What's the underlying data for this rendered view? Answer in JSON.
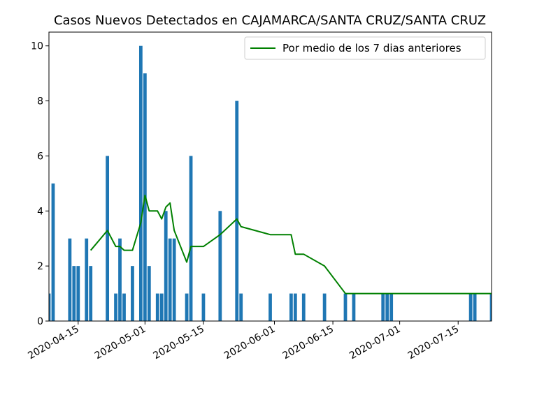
{
  "chart_data": {
    "type": "bar",
    "title": "Casos Nuevos Detectados en CAJAMARCA/SANTA CRUZ/SANTA CRUZ",
    "xlabel": "",
    "ylabel": "",
    "x_range": [
      "2020-04-08",
      "2020-07-23"
    ],
    "ylim": [
      0,
      10.5
    ],
    "y_ticks": [
      0,
      2,
      4,
      6,
      8,
      10
    ],
    "x_ticks": [
      "2020-04-15",
      "2020-05-01",
      "2020-05-15",
      "2020-06-01",
      "2020-06-15",
      "2020-07-01",
      "2020-07-15"
    ],
    "grid": false,
    "legend_position": "top-right",
    "bar_color": "#1f77b4",
    "line_color": "#008000",
    "bars": [
      {
        "x": "2020-04-08",
        "y": 1
      },
      {
        "x": "2020-04-09",
        "y": 5
      },
      {
        "x": "2020-04-13",
        "y": 3
      },
      {
        "x": "2020-04-14",
        "y": 2
      },
      {
        "x": "2020-04-15",
        "y": 2
      },
      {
        "x": "2020-04-17",
        "y": 3
      },
      {
        "x": "2020-04-18",
        "y": 2
      },
      {
        "x": "2020-04-22",
        "y": 6
      },
      {
        "x": "2020-04-24",
        "y": 1
      },
      {
        "x": "2020-04-25",
        "y": 3
      },
      {
        "x": "2020-04-26",
        "y": 1
      },
      {
        "x": "2020-04-28",
        "y": 2
      },
      {
        "x": "2020-04-30",
        "y": 10
      },
      {
        "x": "2020-05-01",
        "y": 9
      },
      {
        "x": "2020-05-02",
        "y": 2
      },
      {
        "x": "2020-05-04",
        "y": 1
      },
      {
        "x": "2020-05-05",
        "y": 1
      },
      {
        "x": "2020-05-06",
        "y": 4
      },
      {
        "x": "2020-05-07",
        "y": 3
      },
      {
        "x": "2020-05-08",
        "y": 3
      },
      {
        "x": "2020-05-11",
        "y": 1
      },
      {
        "x": "2020-05-12",
        "y": 6
      },
      {
        "x": "2020-05-15",
        "y": 1
      },
      {
        "x": "2020-05-19",
        "y": 4
      },
      {
        "x": "2020-05-23",
        "y": 8
      },
      {
        "x": "2020-05-24",
        "y": 1
      },
      {
        "x": "2020-05-31",
        "y": 1
      },
      {
        "x": "2020-06-05",
        "y": 1
      },
      {
        "x": "2020-06-06",
        "y": 1
      },
      {
        "x": "2020-06-08",
        "y": 1
      },
      {
        "x": "2020-06-13",
        "y": 1
      },
      {
        "x": "2020-06-18",
        "y": 1
      },
      {
        "x": "2020-06-20",
        "y": 1
      },
      {
        "x": "2020-06-27",
        "y": 1
      },
      {
        "x": "2020-06-28",
        "y": 1
      },
      {
        "x": "2020-06-29",
        "y": 1
      },
      {
        "x": "2020-07-18",
        "y": 1
      },
      {
        "x": "2020-07-19",
        "y": 1
      },
      {
        "x": "2020-07-23",
        "y": 1
      }
    ],
    "series": [
      {
        "name": "Por medio de los 7 dias anteriores",
        "points": [
          {
            "x": "2020-04-18",
            "y": 2.57
          },
          {
            "x": "2020-04-22",
            "y": 3.29
          },
          {
            "x": "2020-04-24",
            "y": 2.71
          },
          {
            "x": "2020-04-25",
            "y": 2.71
          },
          {
            "x": "2020-04-26",
            "y": 2.57
          },
          {
            "x": "2020-04-28",
            "y": 2.57
          },
          {
            "x": "2020-04-30",
            "y": 3.57
          },
          {
            "x": "2020-05-01",
            "y": 4.57
          },
          {
            "x": "2020-05-02",
            "y": 4.0
          },
          {
            "x": "2020-05-04",
            "y": 4.0
          },
          {
            "x": "2020-05-05",
            "y": 3.71
          },
          {
            "x": "2020-05-06",
            "y": 4.14
          },
          {
            "x": "2020-05-07",
            "y": 4.29
          },
          {
            "x": "2020-05-08",
            "y": 3.29
          },
          {
            "x": "2020-05-11",
            "y": 2.14
          },
          {
            "x": "2020-05-12",
            "y": 2.71
          },
          {
            "x": "2020-05-15",
            "y": 2.71
          },
          {
            "x": "2020-05-19",
            "y": 3.14
          },
          {
            "x": "2020-05-23",
            "y": 3.71
          },
          {
            "x": "2020-05-24",
            "y": 3.43
          },
          {
            "x": "2020-05-31",
            "y": 3.14
          },
          {
            "x": "2020-06-05",
            "y": 3.14
          },
          {
            "x": "2020-06-06",
            "y": 2.43
          },
          {
            "x": "2020-06-08",
            "y": 2.43
          },
          {
            "x": "2020-06-13",
            "y": 2.0
          },
          {
            "x": "2020-06-18",
            "y": 1.0
          },
          {
            "x": "2020-06-20",
            "y": 1.0
          },
          {
            "x": "2020-06-27",
            "y": 1.0
          },
          {
            "x": "2020-06-28",
            "y": 1.0
          },
          {
            "x": "2020-06-29",
            "y": 1.0
          },
          {
            "x": "2020-07-18",
            "y": 1.0
          },
          {
            "x": "2020-07-19",
            "y": 1.0
          },
          {
            "x": "2020-07-23",
            "y": 1.0
          }
        ]
      }
    ]
  }
}
